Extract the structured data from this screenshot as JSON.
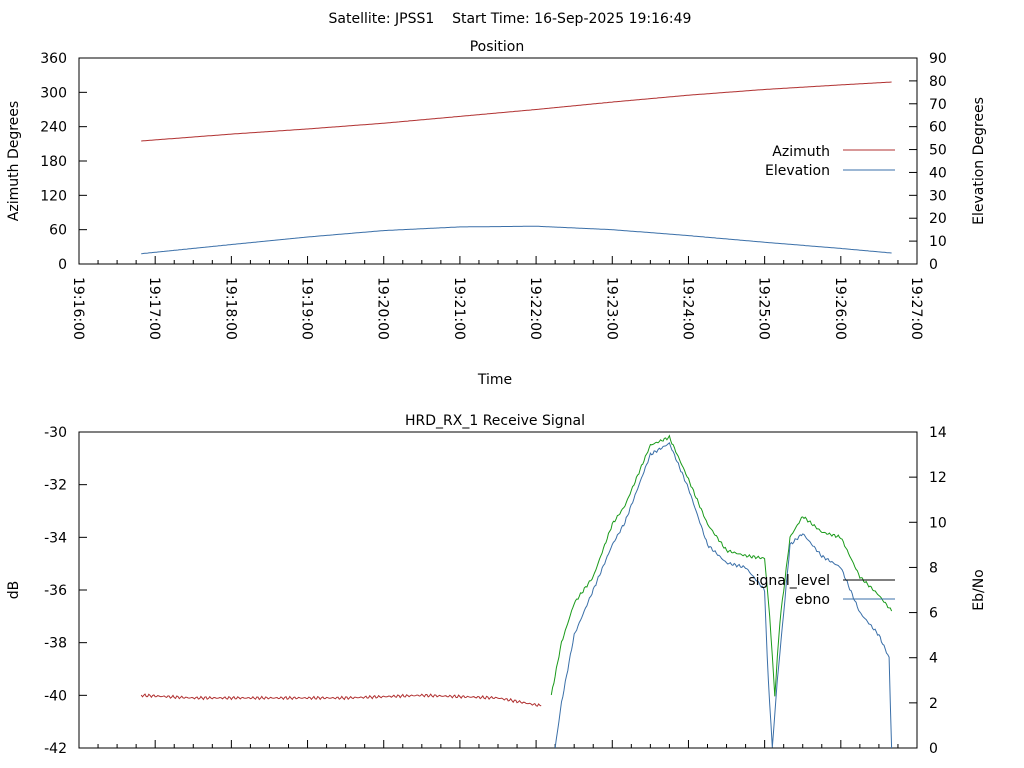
{
  "header": {
    "title": "Satellite: JPSS1    Start Time: 16-Sep-2025 19:16:49"
  },
  "chart_data": [
    {
      "type": "line",
      "title": "Position",
      "xlabel": "Time",
      "ylabel": "Azimuth Degrees",
      "y2label": "Elevation Degrees",
      "x_ticks": [
        "19:16:00",
        "19:17:00",
        "19:18:00",
        "19:19:00",
        "19:20:00",
        "19:21:00",
        "19:22:00",
        "19:23:00",
        "19:24:00",
        "19:25:00",
        "19:26:00",
        "19:27:00"
      ],
      "y_ticks": [
        "0",
        "60",
        "120",
        "180",
        "240",
        "300",
        "360"
      ],
      "y2_ticks": [
        "0",
        "10",
        "20",
        "30",
        "40",
        "50",
        "60",
        "70",
        "80",
        "90"
      ],
      "xlim": [
        "19:16:00",
        "19:27:00"
      ],
      "ylim": [
        0,
        360
      ],
      "y2lim": [
        0,
        90
      ],
      "legend_position": "right",
      "grid": false,
      "x": [
        "19:16:49",
        "19:18:00",
        "19:19:00",
        "19:20:00",
        "19:21:00",
        "19:22:00",
        "19:23:00",
        "19:24:00",
        "19:25:00",
        "19:26:00",
        "19:26:40"
      ],
      "series": [
        {
          "name": "Azimuth",
          "axis": "left",
          "color": "#b03030",
          "values": [
            215,
            227,
            236,
            246,
            258,
            270,
            283,
            295,
            305,
            313,
            318
          ]
        },
        {
          "name": "Elevation",
          "axis": "right",
          "color": "#3a6fa8",
          "values": [
            4.5,
            8.5,
            11.8,
            14.6,
            16.2,
            16.5,
            15.0,
            12.4,
            9.5,
            6.8,
            4.8
          ]
        }
      ]
    },
    {
      "type": "line",
      "title": "HRD_RX_1 Receive Signal",
      "ylabel": "dB",
      "y2label": "Eb/No",
      "y_ticks": [
        "-42",
        "-40",
        "-38",
        "-36",
        "-34",
        "-32",
        "-30"
      ],
      "y2_ticks": [
        "0",
        "2",
        "4",
        "6",
        "8",
        "10",
        "12",
        "14"
      ],
      "xlim": [
        "19:16:00",
        "19:27:00"
      ],
      "ylim": [
        -42,
        -30
      ],
      "y2lim": [
        0,
        14
      ],
      "legend_position": "right",
      "grid": false,
      "series": [
        {
          "name": "signal_level",
          "axis": "left",
          "color": "#b03030",
          "x": [
            "19:16:49",
            "19:17:30",
            "19:18:30",
            "19:19:30",
            "19:20:30",
            "19:21:30",
            "19:22:04"
          ],
          "values": [
            -40.0,
            -40.1,
            -40.1,
            -40.1,
            -40.0,
            -40.1,
            -40.4
          ]
        },
        {
          "name": "signal_level",
          "axis": "left",
          "color": "#1a9a1a",
          "x": [
            "19:22:12",
            "19:22:20",
            "19:22:30",
            "19:22:45",
            "19:23:00",
            "19:23:10",
            "19:23:30",
            "19:23:45",
            "19:24:00",
            "19:24:15",
            "19:24:30",
            "19:24:45",
            "19:25:00",
            "19:25:04",
            "19:25:08",
            "19:25:12",
            "19:25:20",
            "19:25:30",
            "19:25:45",
            "19:26:00",
            "19:26:15",
            "19:26:30",
            "19:26:40"
          ],
          "values": [
            -40.0,
            -38.0,
            -36.5,
            -35.5,
            -33.5,
            -32.8,
            -30.5,
            -30.2,
            -31.8,
            -33.5,
            -34.5,
            -34.7,
            -34.8,
            -37.0,
            -40.0,
            -37.2,
            -34.0,
            -33.2,
            -33.8,
            -34.0,
            -35.5,
            -36.2,
            -36.8
          ]
        },
        {
          "name": "ebno",
          "axis": "right",
          "color": "#3a6fa8",
          "x": [
            "19:22:15",
            "19:22:20",
            "19:22:30",
            "19:22:45",
            "19:23:00",
            "19:23:10",
            "19:23:30",
            "19:23:45",
            "19:24:00",
            "19:24:15",
            "19:24:30",
            "19:24:45",
            "19:25:00",
            "19:25:02",
            "19:25:06",
            "19:25:10",
            "19:25:20",
            "19:25:30",
            "19:25:45",
            "19:26:00",
            "19:26:15",
            "19:26:30",
            "19:26:38",
            "19:26:40"
          ],
          "values": [
            0.0,
            2.0,
            5.0,
            7.0,
            9.0,
            10.0,
            13.0,
            13.5,
            11.5,
            9.0,
            8.2,
            8.0,
            7.0,
            4.0,
            0.0,
            3.0,
            9.0,
            9.5,
            8.5,
            8.0,
            6.0,
            5.0,
            4.0,
            0.0
          ]
        }
      ]
    }
  ]
}
